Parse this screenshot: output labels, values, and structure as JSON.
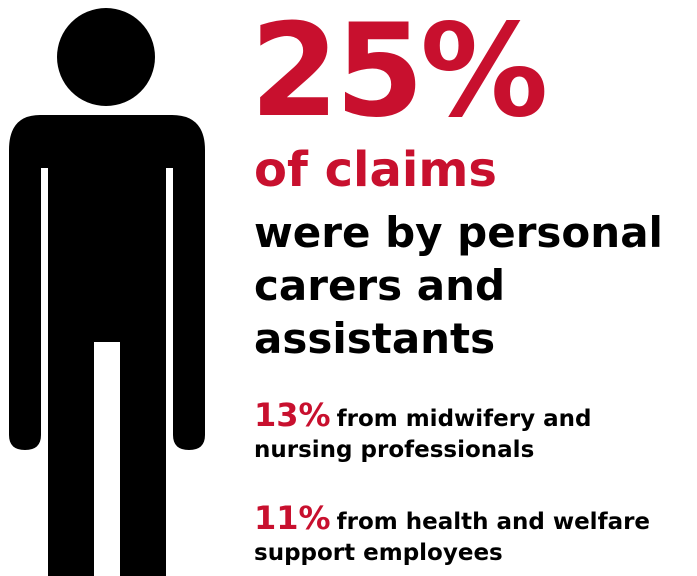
{
  "colors": {
    "accent": "#c8102e",
    "text": "#000000",
    "background": "#ffffff"
  },
  "icon": "person-icon",
  "headline": {
    "number": "25%",
    "subtitle": "of claims",
    "description": "were by personal carers and assistants"
  },
  "stats": [
    {
      "percent": "13%",
      "text": "from midwifery and nursing professionals"
    },
    {
      "percent": "11%",
      "text": "from health and welfare support employees"
    }
  ]
}
